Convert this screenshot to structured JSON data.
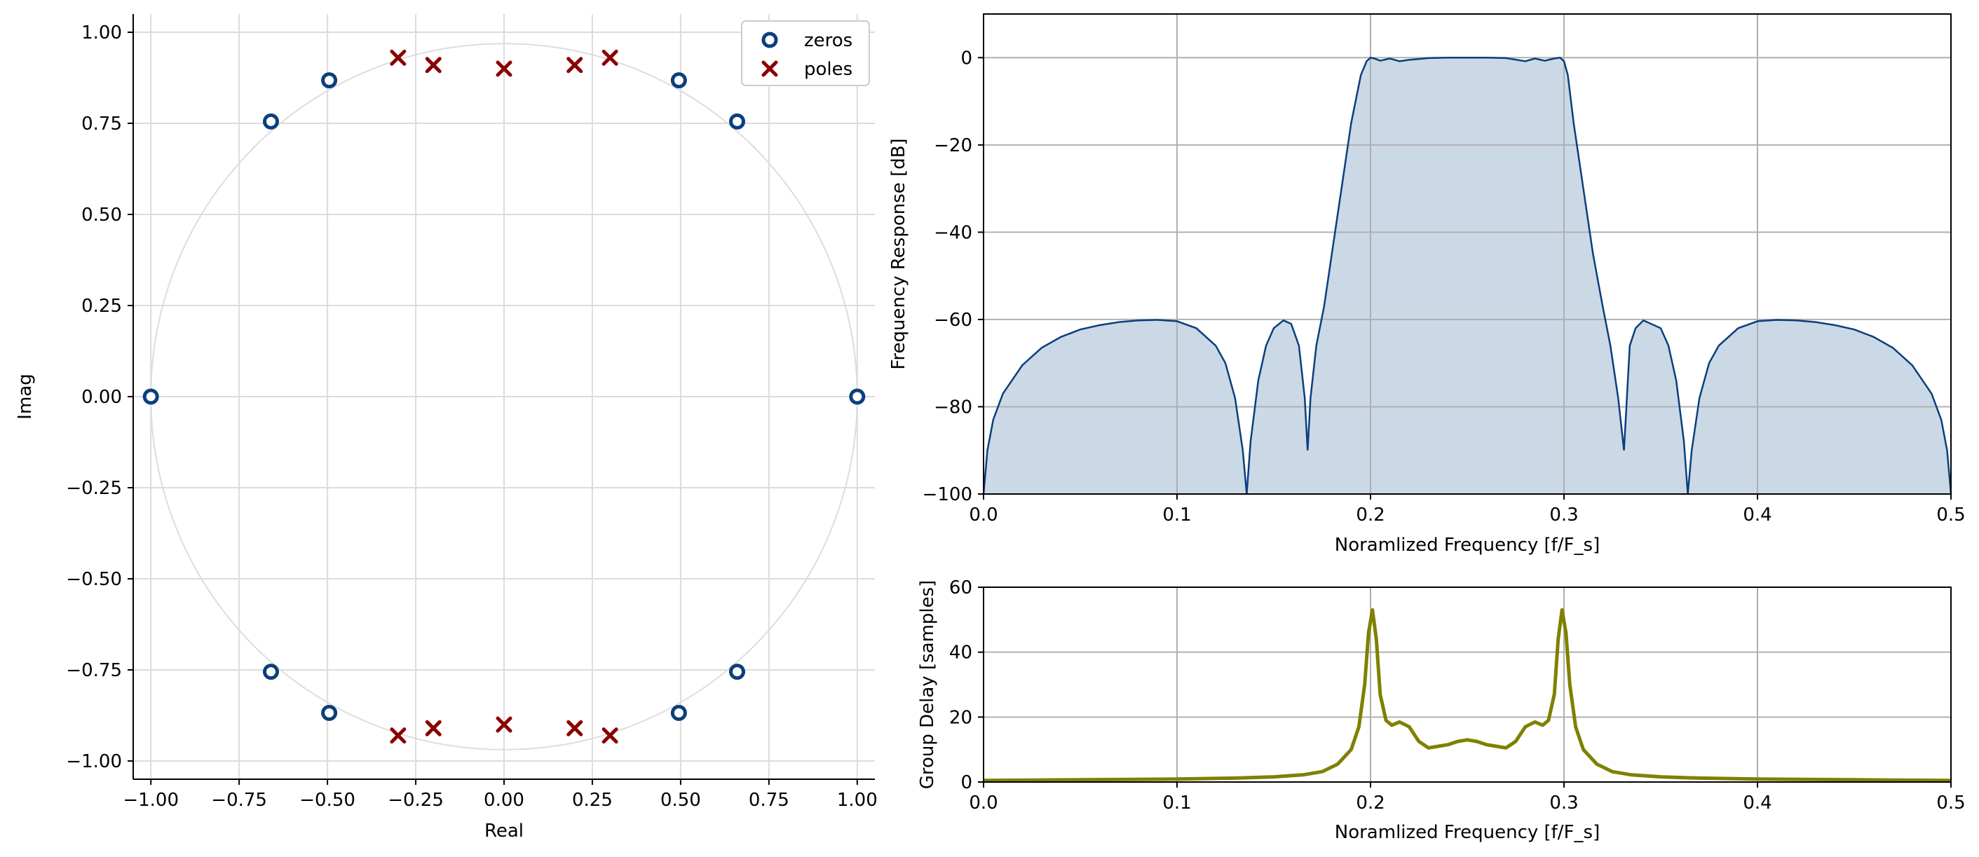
{
  "colors": {
    "zeros": "#0b3f7c",
    "poles": "#8b0000",
    "response_line": "#0b3f7c",
    "response_fill": "#cbd8e6",
    "group_delay": "#808000",
    "grid": "#b0b0b0",
    "pz_grid": "#dcdcdc",
    "unit_circle": "#dddddd"
  },
  "chart_data": [
    {
      "type": "scatter",
      "xlabel": "Real",
      "ylabel": "Imag",
      "xlim": [
        -1.05,
        1.05
      ],
      "ylim": [
        -1.05,
        1.05
      ],
      "grid": true,
      "legend_position": "top-right",
      "xticks": [
        -1.0,
        -0.75,
        -0.5,
        -0.25,
        0.0,
        0.25,
        0.5,
        0.75,
        1.0
      ],
      "xtick_labels": [
        "−1.00",
        "−0.75",
        "−0.50",
        "−0.25",
        "0.00",
        "0.25",
        "0.50",
        "0.75",
        "1.00"
      ],
      "yticks": [
        1.0,
        0.75,
        0.5,
        0.25,
        0.0,
        -0.25,
        -0.5,
        -0.75,
        -1.0
      ],
      "ytick_labels": [
        "1.00",
        "0.75",
        "0.50",
        "0.25",
        "0.00",
        "−0.25",
        "−0.50",
        "−0.75",
        "−1.00"
      ],
      "unit_circle": true,
      "series": [
        {
          "name": "zeros",
          "marker": "circle",
          "points": [
            [
              -1.0,
              0.0
            ],
            [
              1.0,
              0.0
            ],
            [
              -0.66,
              0.755
            ],
            [
              -0.495,
              0.868
            ],
            [
              0.495,
              0.868
            ],
            [
              0.66,
              0.755
            ],
            [
              -0.66,
              -0.755
            ],
            [
              -0.495,
              -0.868
            ],
            [
              0.495,
              -0.868
            ],
            [
              0.66,
              -0.755
            ]
          ]
        },
        {
          "name": "poles",
          "marker": "x",
          "points": [
            [
              -0.3,
              0.93
            ],
            [
              -0.2,
              0.91
            ],
            [
              0.0,
              0.9
            ],
            [
              0.2,
              0.91
            ],
            [
              0.3,
              0.93
            ],
            [
              -0.3,
              -0.93
            ],
            [
              -0.2,
              -0.91
            ],
            [
              0.0,
              -0.9
            ],
            [
              0.2,
              -0.91
            ],
            [
              0.3,
              -0.93
            ]
          ]
        }
      ]
    },
    {
      "type": "area",
      "xlabel": "Noramlized Frequency [f/F_s]",
      "ylabel": "Frequency Response [dB]",
      "xlim": [
        0.0,
        0.5
      ],
      "ylim": [
        -100,
        10
      ],
      "grid": true,
      "xticks": [
        0.0,
        0.1,
        0.2,
        0.3,
        0.4,
        0.5
      ],
      "xtick_labels": [
        "0.0",
        "0.1",
        "0.2",
        "0.3",
        "0.4",
        "0.5"
      ],
      "yticks": [
        0,
        -20,
        -40,
        -60,
        -80,
        -100
      ],
      "ytick_labels": [
        "0",
        "−20",
        "−40",
        "−60",
        "−80",
        "−100"
      ],
      "x": [
        0.0,
        0.002,
        0.005,
        0.01,
        0.02,
        0.03,
        0.04,
        0.05,
        0.06,
        0.07,
        0.08,
        0.09,
        0.1,
        0.11,
        0.12,
        0.125,
        0.13,
        0.134,
        0.136,
        0.138,
        0.142,
        0.146,
        0.15,
        0.155,
        0.159,
        0.163,
        0.166,
        0.1675,
        0.169,
        0.172,
        0.176,
        0.18,
        0.185,
        0.19,
        0.195,
        0.198,
        0.2,
        0.202,
        0.205,
        0.21,
        0.215,
        0.22,
        0.23,
        0.24,
        0.25,
        0.26,
        0.27,
        0.28,
        0.285,
        0.29,
        0.295,
        0.298,
        0.3,
        0.302,
        0.305,
        0.31,
        0.315,
        0.32,
        0.324,
        0.328,
        0.331,
        0.3325,
        0.334,
        0.337,
        0.341,
        0.345,
        0.35,
        0.354,
        0.358,
        0.362,
        0.364,
        0.366,
        0.37,
        0.375,
        0.38,
        0.39,
        0.4,
        0.41,
        0.42,
        0.43,
        0.44,
        0.45,
        0.46,
        0.47,
        0.48,
        0.49,
        0.495,
        0.498,
        0.5
      ],
      "y": [
        -100,
        -90,
        -83,
        -77,
        -70.5,
        -66.5,
        -64,
        -62.3,
        -61.3,
        -60.6,
        -60.2,
        -60.1,
        -60.4,
        -62,
        -66,
        -70,
        -78,
        -90,
        -100,
        -88,
        -74,
        -66,
        -62,
        -60.2,
        -61,
        -66,
        -78,
        -90,
        -78,
        -66,
        -57,
        -45,
        -30,
        -15,
        -4,
        -0.8,
        0.0,
        -0.2,
        -0.7,
        -0.2,
        -0.8,
        -0.5,
        -0.1,
        0.0,
        0.0,
        0.0,
        -0.1,
        -0.8,
        -0.2,
        -0.7,
        -0.2,
        0.0,
        -0.8,
        -4,
        -15,
        -30,
        -45,
        -57,
        -66,
        -78,
        -90,
        -78,
        -66,
        -62,
        -60.2,
        -61,
        -62,
        -66,
        -74,
        -88,
        -100,
        -90,
        -78,
        -70,
        -66,
        -62,
        -60.4,
        -60.1,
        -60.2,
        -60.6,
        -61.3,
        -62.3,
        -64,
        -66.5,
        -70.5,
        -77,
        -83,
        -90,
        -100
      ]
    },
    {
      "type": "line",
      "xlabel": "Noramlized Frequency [f/F_s]",
      "ylabel": "Group Delay [samples]",
      "xlim": [
        0.0,
        0.5
      ],
      "ylim": [
        0,
        60
      ],
      "grid": true,
      "xticks": [
        0.0,
        0.1,
        0.2,
        0.3,
        0.4,
        0.5
      ],
      "xtick_labels": [
        "0.0",
        "0.1",
        "0.2",
        "0.3",
        "0.4",
        "0.5"
      ],
      "yticks": [
        0,
        20,
        40,
        60
      ],
      "ytick_labels": [
        "0",
        "20",
        "40",
        "60"
      ],
      "x": [
        0.0,
        0.05,
        0.1,
        0.13,
        0.15,
        0.165,
        0.175,
        0.183,
        0.19,
        0.194,
        0.197,
        0.199,
        0.201,
        0.203,
        0.205,
        0.208,
        0.211,
        0.215,
        0.22,
        0.225,
        0.23,
        0.235,
        0.24,
        0.245,
        0.25,
        0.255,
        0.26,
        0.265,
        0.27,
        0.275,
        0.28,
        0.285,
        0.289,
        0.292,
        0.295,
        0.297,
        0.299,
        0.301,
        0.303,
        0.306,
        0.31,
        0.317,
        0.325,
        0.335,
        0.35,
        0.37,
        0.4,
        0.45,
        0.5
      ],
      "y": [
        0.5,
        0.7,
        0.9,
        1.2,
        1.6,
        2.2,
        3.2,
        5.5,
        10,
        17,
        30,
        46,
        53,
        44,
        27,
        19,
        17.5,
        18.5,
        17,
        12.5,
        10.5,
        11,
        11.5,
        12.5,
        13,
        12.5,
        11.5,
        11,
        10.5,
        12.5,
        17,
        18.5,
        17.5,
        19,
        27,
        44,
        53,
        46,
        30,
        17,
        10,
        5.5,
        3.2,
        2.2,
        1.6,
        1.2,
        0.9,
        0.7,
        0.5
      ]
    }
  ]
}
